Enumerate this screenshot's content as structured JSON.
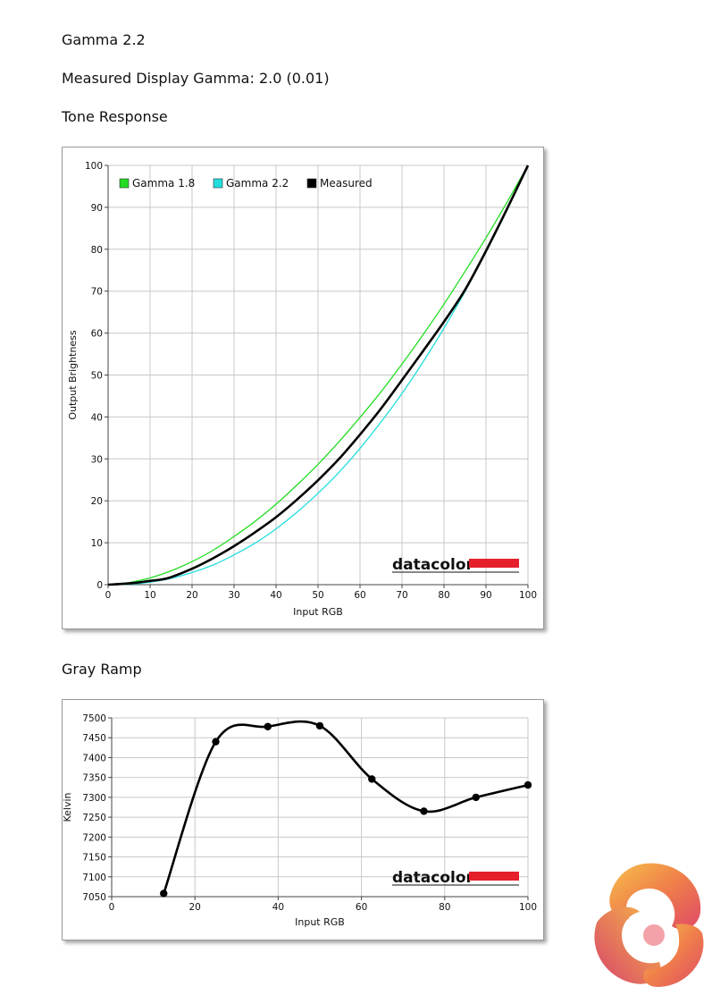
{
  "page": {
    "title": "Gamma 2.2",
    "measured_gamma": "Measured Display Gamma: 2.0 (0.01)",
    "tone_heading": "Tone Response",
    "gray_heading": "Gray Ramp"
  },
  "brand": {
    "text": "datacolor",
    "color": "#e5202b"
  },
  "chart_data": [
    {
      "type": "line",
      "title": "",
      "xlabel": "Input RGB",
      "ylabel": "Output Brightness",
      "xlim": [
        0,
        100
      ],
      "ylim": [
        0,
        100
      ],
      "xticks": [
        0,
        10,
        20,
        30,
        40,
        50,
        60,
        70,
        80,
        90,
        100
      ],
      "yticks": [
        0,
        10,
        20,
        30,
        40,
        50,
        60,
        70,
        80,
        90,
        100
      ],
      "grid": true,
      "legend": "top-left",
      "series": [
        {
          "name": "Gamma 1.8",
          "color": "#22dd22",
          "x": [
            0,
            5,
            10,
            15,
            20,
            25,
            30,
            35,
            40,
            45,
            50,
            55,
            60,
            65,
            70,
            75,
            80,
            85,
            90,
            95,
            100
          ],
          "y": [
            0,
            0.5,
            1.6,
            3.3,
            5.5,
            8.2,
            11.5,
            15.1,
            19.2,
            23.8,
            28.7,
            34.1,
            39.9,
            46.0,
            52.6,
            59.6,
            66.9,
            74.7,
            82.7,
            91.2,
            100
          ]
        },
        {
          "name": "Gamma 2.2",
          "color": "#22dddd",
          "x": [
            0,
            5,
            10,
            15,
            20,
            25,
            30,
            35,
            40,
            45,
            50,
            55,
            60,
            65,
            70,
            75,
            80,
            85,
            90,
            95,
            100
          ],
          "y": [
            0,
            0.1,
            0.6,
            1.5,
            2.9,
            4.7,
            7.1,
            9.9,
            13.3,
            17.3,
            21.8,
            26.8,
            32.5,
            38.8,
            45.6,
            53.1,
            61.2,
            69.9,
            79.3,
            89.3,
            100
          ]
        },
        {
          "name": "Measured",
          "color": "#000000",
          "x": [
            0,
            5,
            10,
            12.5,
            15,
            20,
            25,
            30,
            35,
            40,
            45,
            50,
            55,
            60,
            65,
            70,
            75,
            80,
            85,
            90,
            95,
            100
          ],
          "y": [
            0,
            0.3,
            0.9,
            1.2,
            1.8,
            3.8,
            6.3,
            9.2,
            12.5,
            16.1,
            20.3,
            24.9,
            30.0,
            35.8,
            42.0,
            48.8,
            55.7,
            62.7,
            70.3,
            79.6,
            89.6,
            100
          ]
        }
      ]
    },
    {
      "type": "line",
      "title": "",
      "xlabel": "Input RGB",
      "ylabel": "Kelvin",
      "xlim": [
        0,
        100
      ],
      "ylim": [
        7050,
        7500
      ],
      "xticks": [
        0,
        20,
        40,
        60,
        80,
        100
      ],
      "yticks": [
        7050,
        7100,
        7150,
        7200,
        7250,
        7300,
        7350,
        7400,
        7450,
        7500
      ],
      "grid": true,
      "series": [
        {
          "color": "#000000",
          "x": [
            12.5,
            25,
            37.5,
            50,
            62.5,
            75,
            87.5,
            100
          ],
          "y": [
            7058,
            7440,
            7478,
            7480,
            7346,
            7265,
            7300,
            7331
          ]
        }
      ]
    }
  ]
}
